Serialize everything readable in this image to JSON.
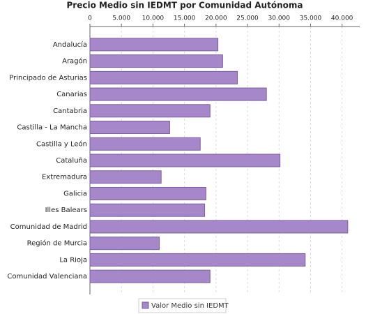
{
  "chart_data": {
    "type": "bar",
    "orientation": "horizontal",
    "title": "Precio Medio sin IEDMT por Comunidad Autónoma",
    "categories": [
      "Andalucía",
      "Aragón",
      "Principado de Asturias",
      "Canarias",
      "Cantabria",
      "Castilla - La Mancha",
      "Castilla y León",
      "Cataluña",
      "Extremadura",
      "Galicia",
      "Illes Balears",
      "Comunidad de Madrid",
      "Región de Murcia",
      "La Rioja",
      "Comunidad Valenciana"
    ],
    "series": [
      {
        "name": "Valor Medio sin IEDMT",
        "color": "#a687c9",
        "values": [
          20300,
          21050,
          23400,
          28000,
          19050,
          12650,
          17500,
          30150,
          11300,
          18400,
          18200,
          40900,
          11000,
          34150,
          19050
        ]
      }
    ],
    "xlim": [
      0,
      42800
    ],
    "xticks": [
      0,
      {
        "value": 5000,
        "label": "5.000"
      },
      {
        "value": 10000,
        "label": "10.000"
      },
      {
        "value": 15000,
        "label": "15.000"
      },
      {
        "value": 20000,
        "label": "20.000"
      },
      {
        "value": 25000,
        "label": "25.000"
      },
      {
        "value": 30000,
        "label": "30.000"
      },
      {
        "value": 35000,
        "label": "35.000"
      },
      {
        "value": 40000,
        "label": "40.000"
      }
    ],
    "grid": true,
    "legend": "bottom"
  }
}
